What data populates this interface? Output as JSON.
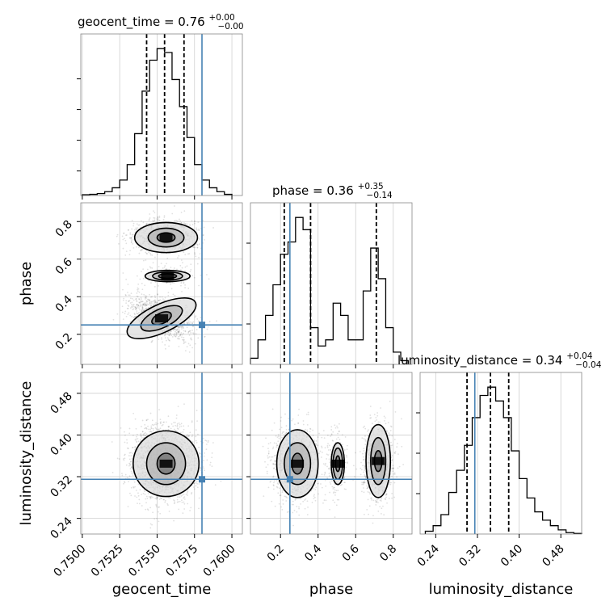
{
  "chart_data": {
    "type": "corner",
    "parameters": [
      "geocent_time",
      "phase",
      "luminosity_distance"
    ],
    "axis_labels": {
      "x": [
        "geocent_time",
        "phase",
        "luminosity_distance"
      ],
      "y": [
        "phase",
        "luminosity_distance"
      ]
    },
    "truth": {
      "geocent_time": 0.758,
      "phase": 0.25,
      "luminosity_distance": 0.315
    },
    "truth_color": "#4682b4",
    "grid": true,
    "titles": [
      {
        "parameter": "geocent_time",
        "prefix": "geocent_time = 0.76",
        "plus": "+0.00",
        "minus": "−0.00"
      },
      {
        "parameter": "phase",
        "prefix": "phase = 0.36",
        "plus": "+0.35",
        "minus": "−0.14"
      },
      {
        "parameter": "luminosity_distance",
        "prefix": "luminosity_distance = 0.34",
        "plus": "+0.04",
        "minus": "−0.04"
      }
    ],
    "ticks": {
      "geocent_time": {
        "range": [
          0.7499,
          0.7607
        ],
        "values": [
          0.75,
          0.7525,
          0.755,
          0.7575,
          0.76
        ],
        "labels": [
          "0.7500",
          "0.7525",
          "0.7550",
          "0.7575",
          "0.7600"
        ]
      },
      "phase": {
        "range": [
          0.04,
          0.9
        ],
        "values": [
          0.2,
          0.4,
          0.6,
          0.8
        ],
        "labels": [
          "0.2",
          "0.4",
          "0.6",
          "0.8"
        ]
      },
      "luminosity_distance": {
        "range": [
          0.21,
          0.52
        ],
        "values": [
          0.24,
          0.32,
          0.4,
          0.48
        ],
        "labels": [
          "0.24",
          "0.32",
          "0.40",
          "0.48"
        ]
      }
    },
    "histograms": {
      "geocent_time": {
        "quantiles": [
          0.7543,
          0.7555,
          0.7568
        ],
        "bin_edges": [
          0.75,
          0.7505,
          0.751,
          0.7515,
          0.752,
          0.7525,
          0.753,
          0.7535,
          0.754,
          0.7545,
          0.755,
          0.7555,
          0.756,
          0.7565,
          0.757,
          0.7575,
          0.758,
          0.7585,
          0.759,
          0.7595,
          0.76
        ],
        "counts": [
          2,
          3,
          5,
          10,
          20,
          40,
          80,
          160,
          270,
          350,
          380,
          370,
          300,
          230,
          150,
          80,
          40,
          20,
          10,
          3
        ]
      },
      "phase": {
        "quantiles": [
          0.22,
          0.36,
          0.71
        ],
        "bin_edges": [
          0.04,
          0.08,
          0.12,
          0.16,
          0.2,
          0.24,
          0.28,
          0.32,
          0.36,
          0.4,
          0.44,
          0.48,
          0.52,
          0.56,
          0.6,
          0.64,
          0.68,
          0.72,
          0.76,
          0.8,
          0.84,
          0.88
        ],
        "counts": [
          5,
          20,
          40,
          65,
          90,
          100,
          120,
          110,
          30,
          15,
          20,
          50,
          40,
          20,
          20,
          60,
          95,
          70,
          30,
          10,
          3
        ]
      },
      "luminosity_distance": {
        "quantiles": [
          0.3,
          0.345,
          0.38
        ],
        "bin_edges": [
          0.22,
          0.235,
          0.25,
          0.265,
          0.28,
          0.295,
          0.31,
          0.325,
          0.34,
          0.355,
          0.37,
          0.385,
          0.4,
          0.415,
          0.43,
          0.445,
          0.46,
          0.475,
          0.49,
          0.505,
          0.52
        ],
        "counts": [
          10,
          30,
          70,
          150,
          230,
          320,
          420,
          500,
          530,
          480,
          420,
          300,
          200,
          130,
          80,
          50,
          30,
          15,
          5,
          2
        ]
      }
    }
  }
}
